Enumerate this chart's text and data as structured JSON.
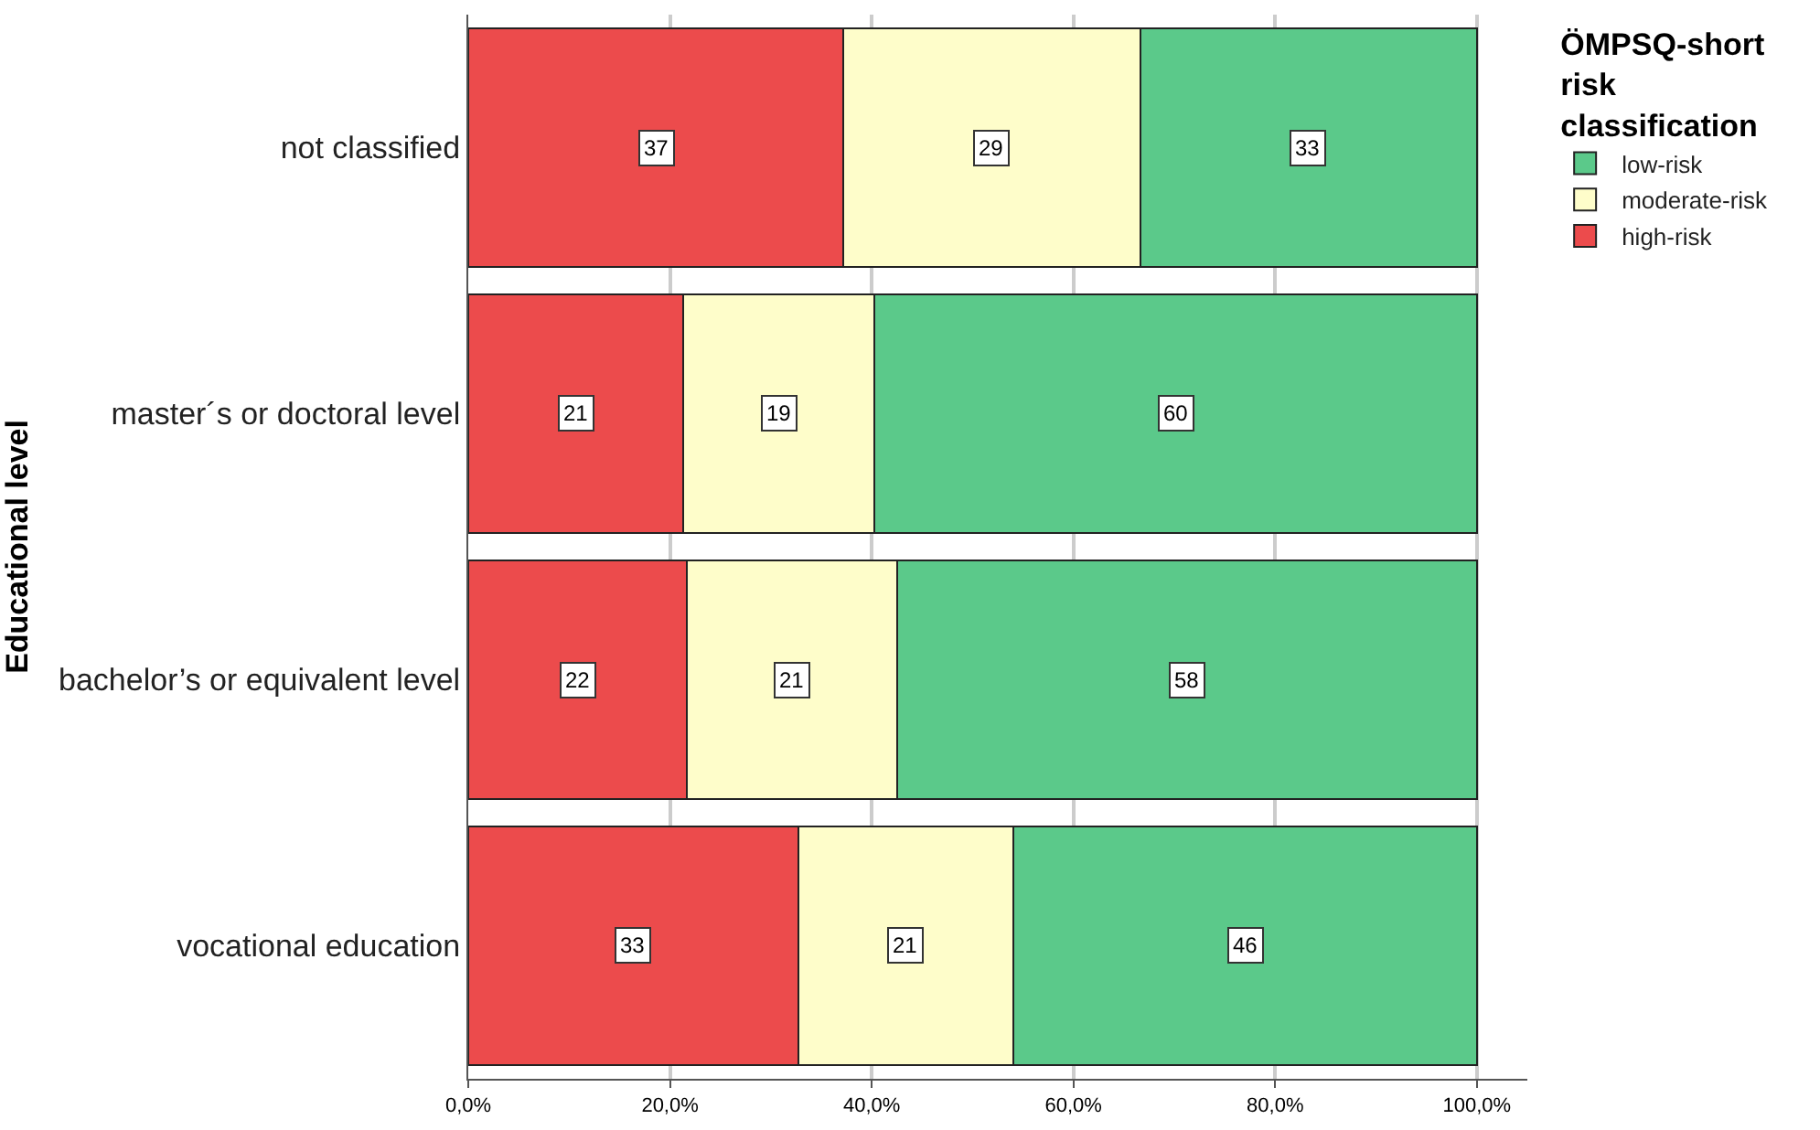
{
  "chart_data": {
    "type": "bar",
    "orientation": "horizontal",
    "stacked": true,
    "ylabel": "Educational level",
    "legend_title": "ÖMPSQ-short risk classification",
    "categories": [
      "not classified",
      "master´s or doctoral level",
      "bachelor’s or equivalent level",
      "vocational education"
    ],
    "series": [
      {
        "name": "high-risk",
        "color": "#ec4b4c",
        "values": [
          37.2,
          21.3,
          21.7,
          32.7
        ],
        "value_labels": [
          "37",
          "21",
          "22",
          "33"
        ]
      },
      {
        "name": "moderate-risk",
        "color": "#fefdca",
        "values": [
          29.4,
          19.0,
          20.8,
          21.3
        ],
        "value_labels": [
          "29",
          "19",
          "21",
          "21"
        ]
      },
      {
        "name": "low-risk",
        "color": "#5bc98a",
        "values": [
          33.4,
          59.7,
          57.5,
          46.0
        ],
        "value_labels": [
          "33",
          "60",
          "58",
          "46"
        ]
      }
    ],
    "xlim": [
      0,
      105
    ],
    "xticks": [
      {
        "value": 0,
        "label": "0,0%"
      },
      {
        "value": 20,
        "label": "20,0%"
      },
      {
        "value": 40,
        "label": "40,0%"
      },
      {
        "value": 60,
        "label": "60,0%"
      },
      {
        "value": 80,
        "label": "80,0%"
      },
      {
        "value": 100,
        "label": "100,0%"
      }
    ],
    "grid": "x",
    "legend": "top right"
  }
}
